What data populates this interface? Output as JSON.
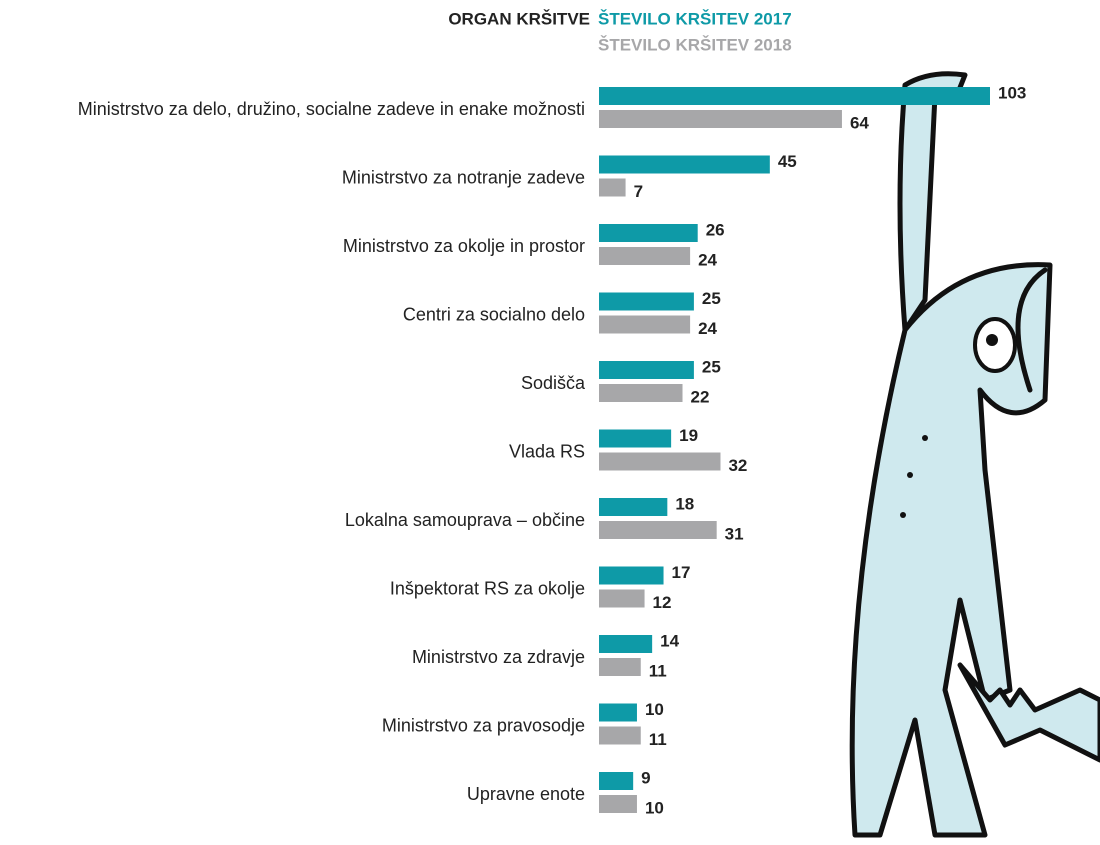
{
  "chart_data": {
    "type": "bar",
    "orientation": "horizontal",
    "category_header": "ORGAN KRŠITVE",
    "categories": [
      "Ministrstvo za delo, družino, socialne zadeve in enake možnosti",
      "Ministrstvo za notranje zadeve",
      "Ministrstvo za okolje in prostor",
      "Centri za socialno delo",
      "Sodišča",
      "Vlada RS",
      "Lokalna samouprava – občine",
      "Inšpektorat RS za okolje",
      "Ministrstvo za zdravje",
      "Ministrstvo za pravosodje",
      "Upravne enote"
    ],
    "series": [
      {
        "name": "ŠTEVILO KRŠITEV 2017",
        "color": "#0e9aa7",
        "values": [
          103,
          45,
          26,
          25,
          25,
          19,
          18,
          17,
          14,
          10,
          9
        ]
      },
      {
        "name": "ŠTEVILO KRŠITEV 2018",
        "color": "#a7a7a9",
        "values": [
          64,
          7,
          24,
          24,
          22,
          32,
          31,
          12,
          11,
          11,
          10
        ]
      }
    ]
  }
}
